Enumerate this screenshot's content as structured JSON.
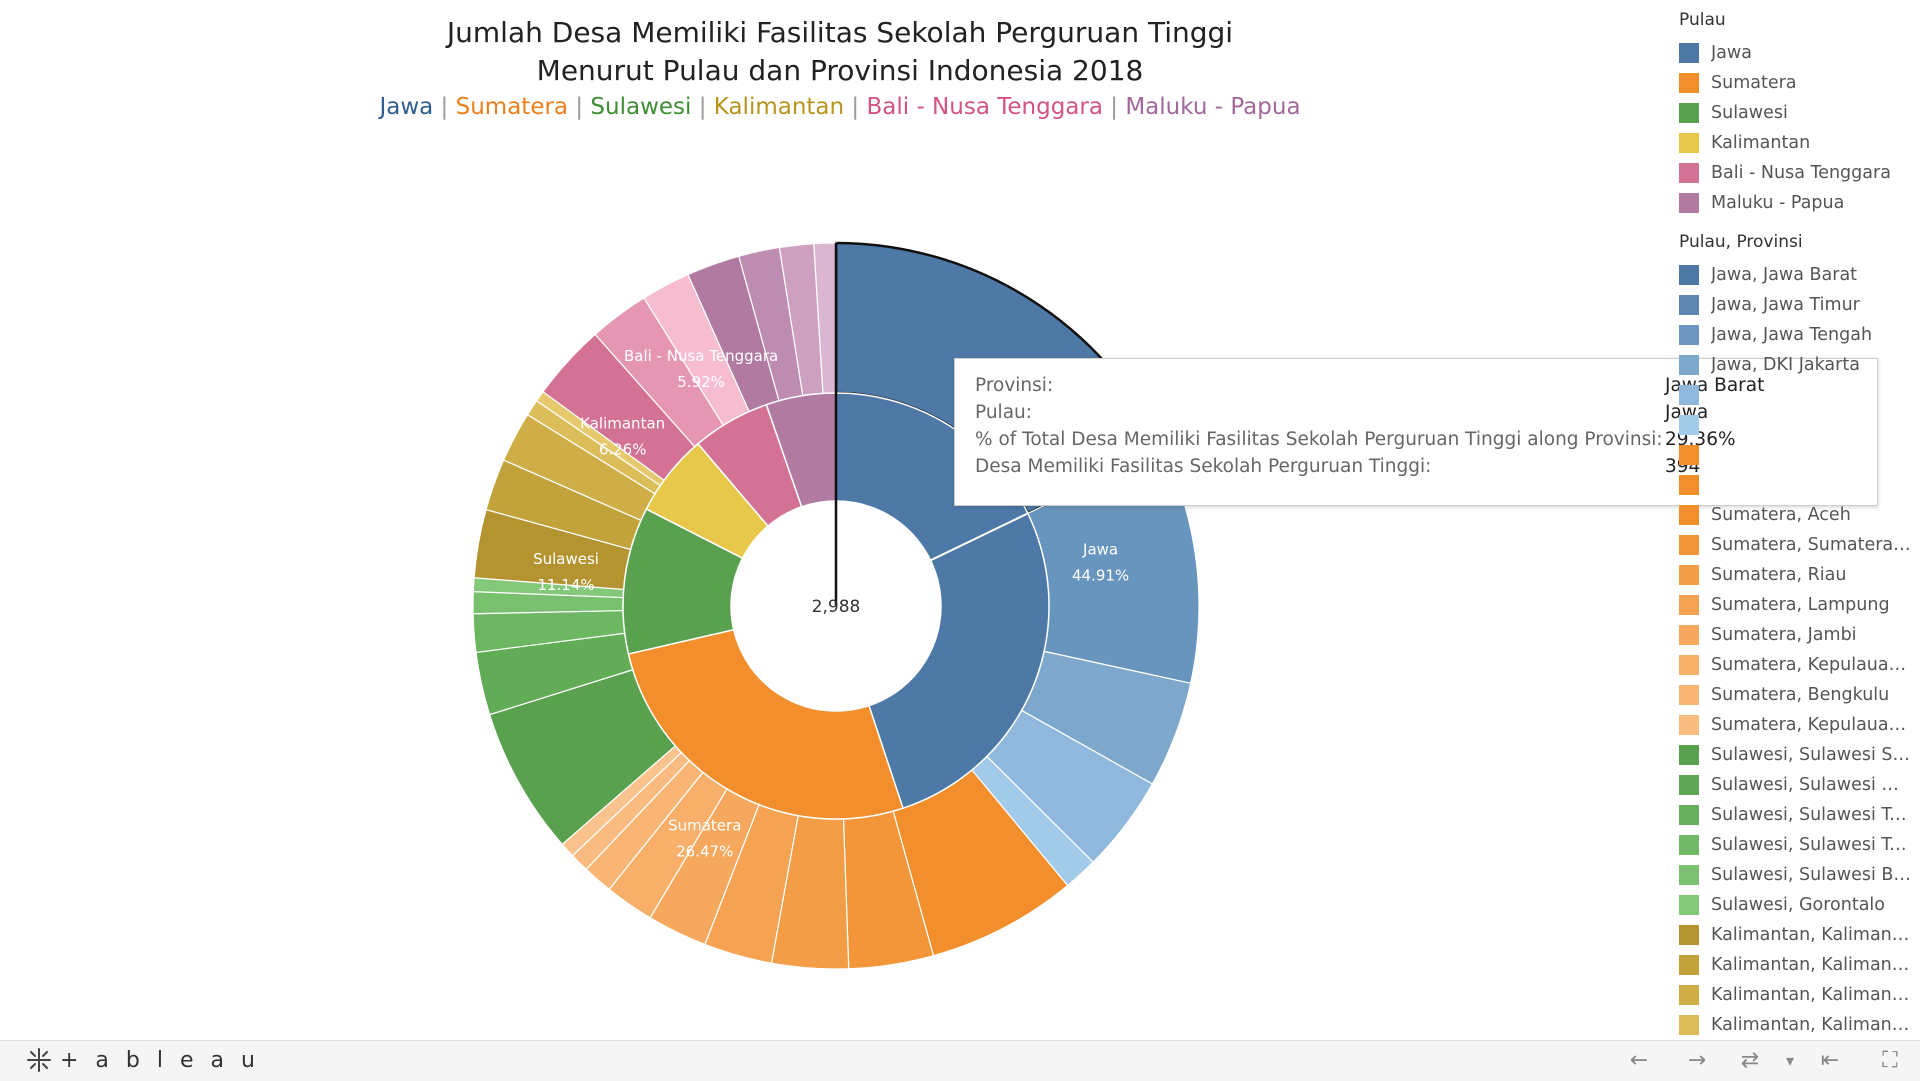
{
  "title": {
    "line1": "Jumlah Desa Memiliki Fasilitas Sekolah Perguruan Tinggi",
    "line2": "Menurut Pulau dan Provinsi Indonesia 2018"
  },
  "subtitle_items": [
    {
      "text": "Jawa",
      "color": "#2f5d8f"
    },
    {
      "text": "Sumatera",
      "color": "#ee7f1c"
    },
    {
      "text": "Sulawesi",
      "color": "#3f8e35"
    },
    {
      "text": "Kalimantan",
      "color": "#b8941e"
    },
    {
      "text": "Bali - Nusa Tenggara",
      "color": "#d3547e"
    },
    {
      "text": "Maluku - Papua",
      "color": "#a2679b"
    }
  ],
  "subtitle_separator": "|",
  "chart_data": {
    "type": "sunburst-donut",
    "total_label": "2,988",
    "inner_ring": [
      {
        "pulau": "Jawa",
        "percent": 44.91,
        "label": "Jawa",
        "pct_label": "44.91%",
        "color": "#4e79a7"
      },
      {
        "pulau": "Sumatera",
        "percent": 26.47,
        "label": "Sumatera",
        "pct_label": "26.47%",
        "color": "#f28e2b"
      },
      {
        "pulau": "Sulawesi",
        "percent": 11.14,
        "label": "Sulawesi",
        "pct_label": "11.14%",
        "color": "#59a14f"
      },
      {
        "pulau": "Kalimantan",
        "percent": 6.26,
        "label": "Kalimantan",
        "pct_label": "6.26%",
        "color": "#e8c84a"
      },
      {
        "pulau": "Bali - Nusa Tenggara",
        "percent": 5.92,
        "label": "Bali - Nusa Tenggara",
        "pct_label": "5.92%",
        "color": "#d37295"
      },
      {
        "pulau": "Maluku - Papua",
        "percent": 5.3,
        "label": "",
        "pct_label": "",
        "color": "#b07aa1"
      }
    ],
    "outer_ring": [
      {
        "pulau": "Jawa",
        "percent": 29.36,
        "color": "#4e79a7"
      },
      {
        "pulau": "Jawa",
        "percent": 17.4,
        "color": "#6895be"
      },
      {
        "pulau": "Jawa",
        "percent": 7.8,
        "color": "#7ea7cc"
      },
      {
        "pulau": "Jawa",
        "percent": 7.1,
        "color": "#8fb8dc"
      },
      {
        "pulau": "Jawa",
        "percent": 2.5,
        "color": "#a2cbe9"
      },
      {
        "pulau": "Sumatera",
        "percent": 11.0,
        "color": "#f28e2b"
      },
      {
        "pulau": "Sumatera",
        "percent": 6.2,
        "color": "#f3963a"
      },
      {
        "pulau": "Sumatera",
        "percent": 5.6,
        "color": "#f49d47"
      },
      {
        "pulau": "Sumatera",
        "percent": 5.0,
        "color": "#f5a353"
      },
      {
        "pulau": "Sumatera",
        "percent": 4.4,
        "color": "#f6a95e"
      },
      {
        "pulau": "Sumatera",
        "percent": 3.6,
        "color": "#f7af69"
      },
      {
        "pulau": "Sumatera",
        "percent": 2.2,
        "color": "#f8b574"
      },
      {
        "pulau": "Sumatera",
        "percent": 1.4,
        "color": "#f9bb80"
      },
      {
        "pulau": "Sumatera",
        "percent": 1.1,
        "color": "#fac28c"
      },
      {
        "pulau": "Sulawesi",
        "percent": 10.8,
        "color": "#59a14f"
      },
      {
        "pulau": "Sulawesi",
        "percent": 4.6,
        "color": "#62ac58"
      },
      {
        "pulau": "Sulawesi",
        "percent": 2.8,
        "color": "#6db763"
      },
      {
        "pulau": "Sulawesi",
        "percent": 1.6,
        "color": "#78c06e"
      },
      {
        "pulau": "Sulawesi",
        "percent": 1.0,
        "color": "#84c87a"
      },
      {
        "pulau": "Kalimantan",
        "percent": 5.0,
        "color": "#b39431"
      },
      {
        "pulau": "Kalimantan",
        "percent": 3.8,
        "color": "#c2a23a"
      },
      {
        "pulau": "Kalimantan",
        "percent": 3.7,
        "color": "#cfae48"
      },
      {
        "pulau": "Kalimantan",
        "percent": 1.2,
        "color": "#dbbd5a"
      },
      {
        "pulau": "Kalimantan",
        "percent": 0.8,
        "color": "#e5c96c"
      },
      {
        "pulau": "Bali - Nusa Tenggara",
        "percent": 5.6,
        "color": "#d37295"
      },
      {
        "pulau": "Bali - Nusa Tenggara",
        "percent": 4.4,
        "color": "#e596b2"
      },
      {
        "pulau": "Bali - Nusa Tenggara",
        "percent": 3.6,
        "color": "#f6bdd0"
      },
      {
        "pulau": "Maluku - Papua",
        "percent": 3.9,
        "color": "#b07aa1"
      },
      {
        "pulau": "Maluku - Papua",
        "percent": 3.0,
        "color": "#bf8cb1"
      },
      {
        "pulau": "Maluku - Papua",
        "percent": 2.5,
        "color": "#cda0c0"
      },
      {
        "pulau": "Maluku - Papua",
        "percent": 1.6,
        "color": "#dbb6d0"
      }
    ]
  },
  "legend": {
    "pulau_title": "Pulau",
    "pulau_items": [
      {
        "label": "Jawa",
        "color": "#4e79a7"
      },
      {
        "label": "Sumatera",
        "color": "#f28e2b"
      },
      {
        "label": "Sulawesi",
        "color": "#59a14f"
      },
      {
        "label": "Kalimantan",
        "color": "#e8c84a"
      },
      {
        "label": "Bali - Nusa Tenggara",
        "color": "#d37295"
      },
      {
        "label": "Maluku - Papua",
        "color": "#b07aa1"
      }
    ],
    "provinsi_title": "Pulau, Provinsi",
    "provinsi_items": [
      {
        "label": "Jawa, Jawa Barat",
        "color": "#4e79a7"
      },
      {
        "label": "Jawa, Jawa Timur",
        "color": "#5f87b2"
      },
      {
        "label": "Jawa, Jawa Tengah",
        "color": "#6f96c0"
      },
      {
        "label": "Jawa, DKI Jakarta",
        "color": "#7ea7cc"
      },
      {
        "label": "",
        "color": "#8fb8dc"
      },
      {
        "label": "",
        "color": "#a2cbe9"
      },
      {
        "label": "",
        "color": "#f28e2b"
      },
      {
        "label": "",
        "color": "#f28e2b"
      },
      {
        "label": "Sumatera, Aceh",
        "color": "#f28e2b"
      },
      {
        "label": "Sumatera, Sumatera Utara",
        "color": "#f3963a"
      },
      {
        "label": "Sumatera, Riau",
        "color": "#f49d47"
      },
      {
        "label": "Sumatera, Lampung",
        "color": "#f5a353"
      },
      {
        "label": "Sumatera, Jambi",
        "color": "#f6a95e"
      },
      {
        "label": "Sumatera, Kepulauan Riau",
        "color": "#f7af69"
      },
      {
        "label": "Sumatera, Bengkulu",
        "color": "#f8b574"
      },
      {
        "label": "Sumatera, Kepulauan Bangka Belitung",
        "color": "#f9bb80"
      },
      {
        "label": "Sulawesi, Sulawesi Selatan",
        "color": "#59a14f"
      },
      {
        "label": "Sulawesi, Sulawesi Utara",
        "color": "#5ea655"
      },
      {
        "label": "Sulawesi, Sulawesi Tengah",
        "color": "#67ae5d"
      },
      {
        "label": "Sulawesi, Sulawesi Tenggara",
        "color": "#71b867"
      },
      {
        "label": "Sulawesi, Sulawesi Barat",
        "color": "#7cc172"
      },
      {
        "label": "Sulawesi, Gorontalo",
        "color": "#84c87a"
      },
      {
        "label": "Kalimantan, Kalimantan Barat",
        "color": "#b39431"
      },
      {
        "label": "Kalimantan, Kalimantan Timur",
        "color": "#c2a23a"
      },
      {
        "label": "Kalimantan, Kalimantan Selatan",
        "color": "#cfae48"
      },
      {
        "label": "Kalimantan, Kalimantan Tengah",
        "color": "#dbbd5a"
      }
    ]
  },
  "tooltip": {
    "rows": [
      {
        "key": "Provinsi:",
        "value": "Jawa Barat"
      },
      {
        "key": "Pulau:",
        "value": "Jawa"
      },
      {
        "key": "% of Total Desa Memiliki Fasilitas Sekolah Perguruan Tinggi along Provinsi:",
        "value": "29.36%"
      },
      {
        "key": "Desa Memiliki Fasilitas Sekolah Perguruan Tinggi:",
        "value": "394"
      }
    ]
  },
  "toolbar": {
    "brand": "+ a b l e a u",
    "undo_icon": "←",
    "redo_icon": "→",
    "revert_icon": "⇄",
    "dropdown_icon": "▾",
    "reset_icon": "⇤",
    "fullscreen_icon": "⛶"
  }
}
